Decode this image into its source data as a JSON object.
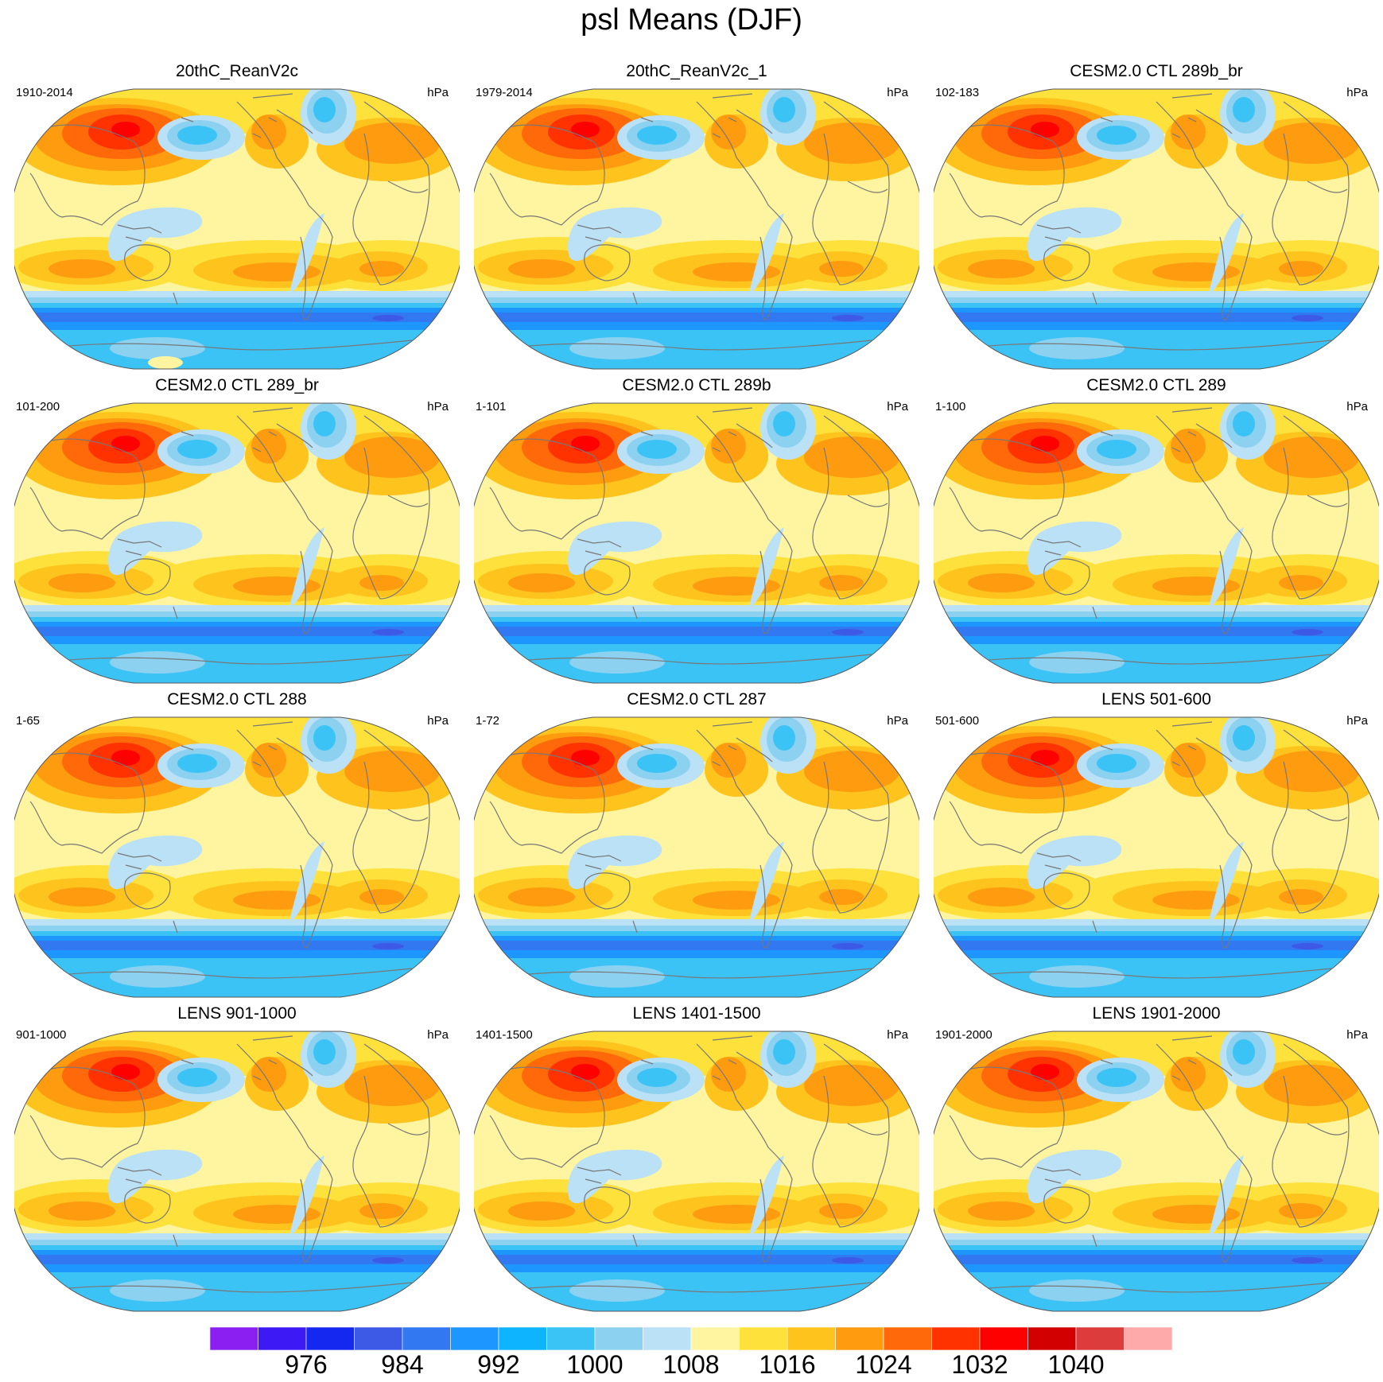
{
  "title": "psl Means (DJF)",
  "units": "hPa",
  "colors": {
    "background": "#ffffff",
    "coastline": "#777777",
    "outline": "#555555"
  },
  "chart_data": {
    "type": "contour-map-panels",
    "title": "psl Means (DJF)",
    "variable": "psl",
    "season": "DJF",
    "units": "hPa",
    "projection": "Robinson (Pacific-centered)",
    "panels": [
      {
        "title": "20thC_ReanV2c",
        "years": "1910-2014",
        "units": "hPa"
      },
      {
        "title": "20thC_ReanV2c_1",
        "years": "1979-2014",
        "units": "hPa"
      },
      {
        "title": "CESM2.0 CTL 289b_br",
        "years": "102-183",
        "units": "hPa"
      },
      {
        "title": "CESM2.0 CTL 289_br",
        "years": "101-200",
        "units": "hPa"
      },
      {
        "title": "CESM2.0 CTL 289b",
        "years": "1-101",
        "units": "hPa"
      },
      {
        "title": "CESM2.0 CTL 289",
        "years": "1-100",
        "units": "hPa"
      },
      {
        "title": "CESM2.0 CTL 288",
        "years": "1-65",
        "units": "hPa"
      },
      {
        "title": "CESM2.0 CTL 287",
        "years": "1-72",
        "units": "hPa"
      },
      {
        "title": "LENS 501-600",
        "years": "501-600",
        "units": "hPa"
      },
      {
        "title": "LENS 901-1000",
        "years": "901-1000",
        "units": "hPa"
      },
      {
        "title": "LENS 1401-1500",
        "years": "1401-1500",
        "units": "hPa"
      },
      {
        "title": "LENS 1901-2000",
        "years": "1901-2000",
        "units": "hPa"
      }
    ],
    "colorbar": {
      "levels": [
        972,
        976,
        980,
        984,
        988,
        992,
        996,
        1000,
        1004,
        1008,
        1012,
        1016,
        1020,
        1024,
        1028,
        1032,
        1036,
        1040,
        1044
      ],
      "labels": [
        "976",
        "984",
        "992",
        "1000",
        "1008",
        "1016",
        "1024",
        "1032",
        "1040"
      ],
      "label_values": [
        976,
        984,
        992,
        1000,
        1008,
        1016,
        1024,
        1032,
        1040
      ],
      "colors": [
        "#8b1ef0",
        "#3c19f5",
        "#1428f0",
        "#3c5ae6",
        "#3278f0",
        "#1e96ff",
        "#0fb4ff",
        "#3cc3f5",
        "#8cd2f0",
        "#bae1f5",
        "#fff5a0",
        "#ffe13c",
        "#ffc31e",
        "#ff9b0f",
        "#ff690a",
        "#ff3200",
        "#ff0000",
        "#d20000",
        "#dc3c3c",
        "#ffaaaa"
      ]
    },
    "features": {
      "siberian_high_max": 1036,
      "aleutian_low_min": 996,
      "icelandic_low_min": 996,
      "southern_ocean_trough_min": 980,
      "subtropical_highs": 1024
    }
  }
}
